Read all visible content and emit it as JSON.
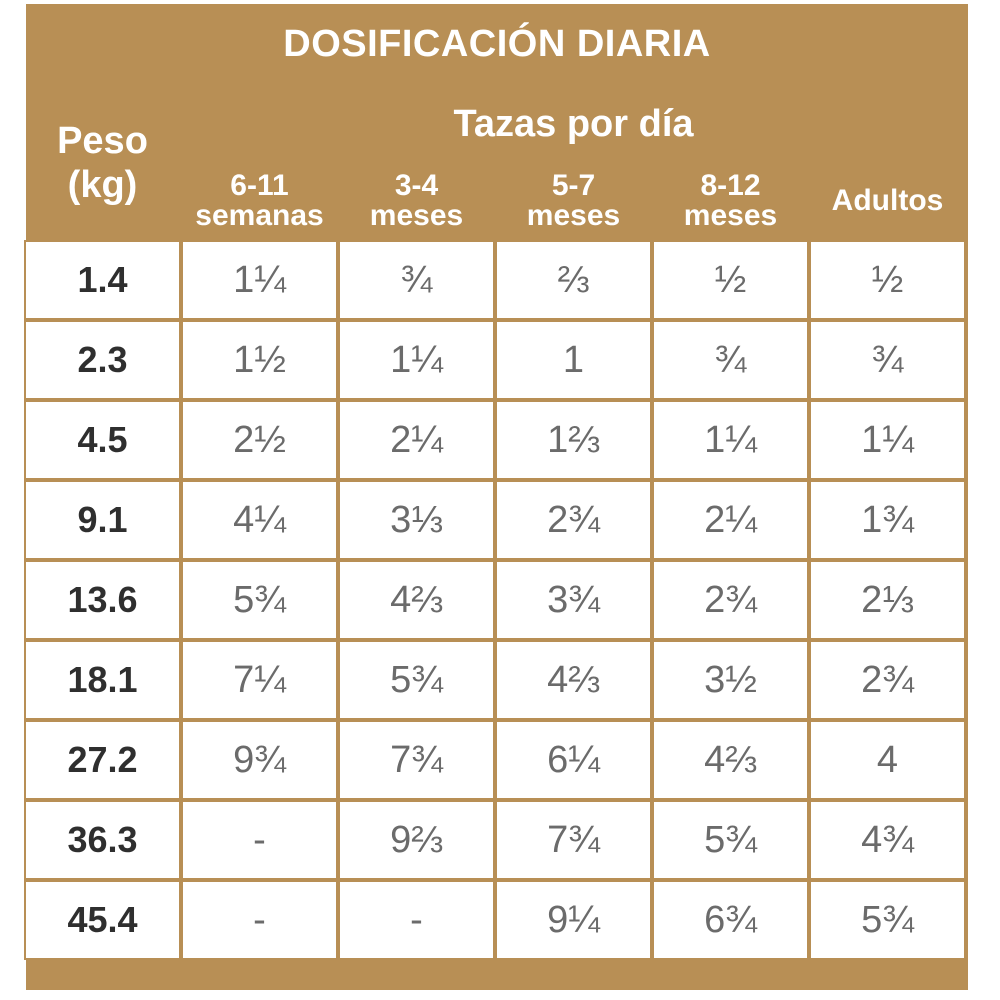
{
  "title": "DOSIFICACIÓN DIARIA",
  "header": {
    "weight_label": "Peso",
    "weight_unit": "(kg)",
    "group_label": "Tazas por día",
    "columns": [
      {
        "line1": "6-11",
        "line2": "semanas"
      },
      {
        "line1": "3-4",
        "line2": "meses"
      },
      {
        "line1": "5-7",
        "line2": "meses"
      },
      {
        "line1": "8-12",
        "line2": "meses"
      },
      {
        "line1": "Adultos",
        "line2": ""
      }
    ]
  },
  "rows": [
    {
      "weight": "1.4",
      "cells": [
        "1¼",
        "¾",
        "⅔",
        "½",
        "½"
      ]
    },
    {
      "weight": "2.3",
      "cells": [
        "1½",
        "1¼",
        "1",
        "¾",
        "¾"
      ]
    },
    {
      "weight": "4.5",
      "cells": [
        "2½",
        "2¼",
        "1⅔",
        "1¼",
        "1¼"
      ]
    },
    {
      "weight": "9.1",
      "cells": [
        "4¼",
        "3⅓",
        "2¾",
        "2¼",
        "1¾"
      ]
    },
    {
      "weight": "13.6",
      "cells": [
        "5¾",
        "4⅔",
        "3¾",
        "2¾",
        "2⅓"
      ]
    },
    {
      "weight": "18.1",
      "cells": [
        "7¼",
        "5¾",
        "4⅔",
        "3½",
        "2¾"
      ]
    },
    {
      "weight": "27.2",
      "cells": [
        "9¾",
        "7¾",
        "6¼",
        "4⅔",
        "4"
      ]
    },
    {
      "weight": "36.3",
      "cells": [
        "-",
        "9⅔",
        "7¾",
        "5¾",
        "4¾"
      ]
    },
    {
      "weight": "45.4",
      "cells": [
        "-",
        "-",
        "9¼",
        "6¾",
        "5¾"
      ]
    }
  ],
  "colors": {
    "accent": "#b88f55",
    "text": "#6b6b6b",
    "weight_text": "#2f2f2f"
  }
}
